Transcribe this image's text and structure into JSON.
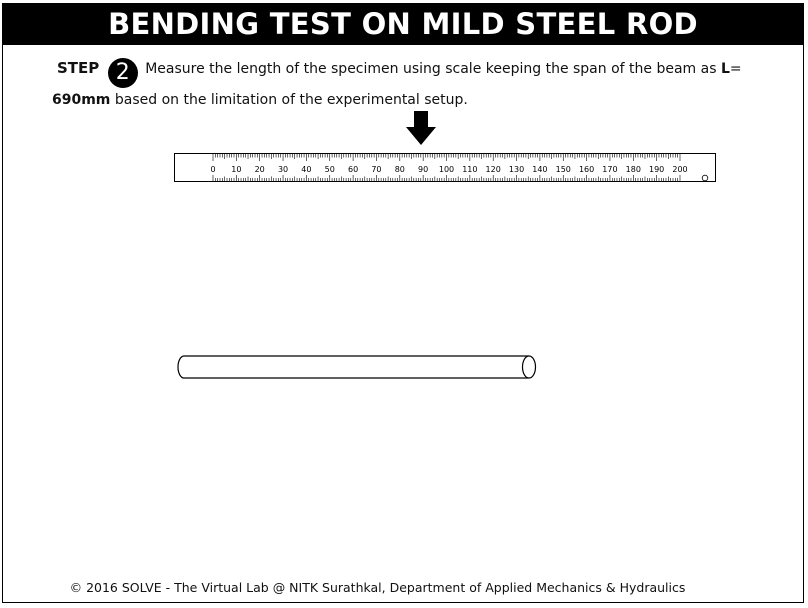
{
  "header": {
    "title": "BENDING TEST ON MILD STEEL ROD"
  },
  "step": {
    "label": "STEP",
    "number": "2",
    "text_before": "Measure the length of the specimen using scale keeping the span of the beam as ",
    "length_symbol": "L",
    "equals": "=",
    "length_value": "690mm",
    "text_after": " based on the limitation of the experimental setup."
  },
  "scale": {
    "tick_labels": [
      "0",
      "10",
      "20",
      "30",
      "40",
      "50",
      "60",
      "70",
      "80",
      "90",
      "100",
      "110",
      "120",
      "130",
      "140",
      "150",
      "160",
      "170",
      "180",
      "190",
      "200"
    ],
    "arrow_icon": "down-arrow-icon"
  },
  "specimen": {
    "icon": "steel-rod"
  },
  "footer": {
    "text": "© 2016 SOLVE - The Virtual Lab @ NITK Surathkal, Department of Applied Mechanics & Hydraulics"
  }
}
